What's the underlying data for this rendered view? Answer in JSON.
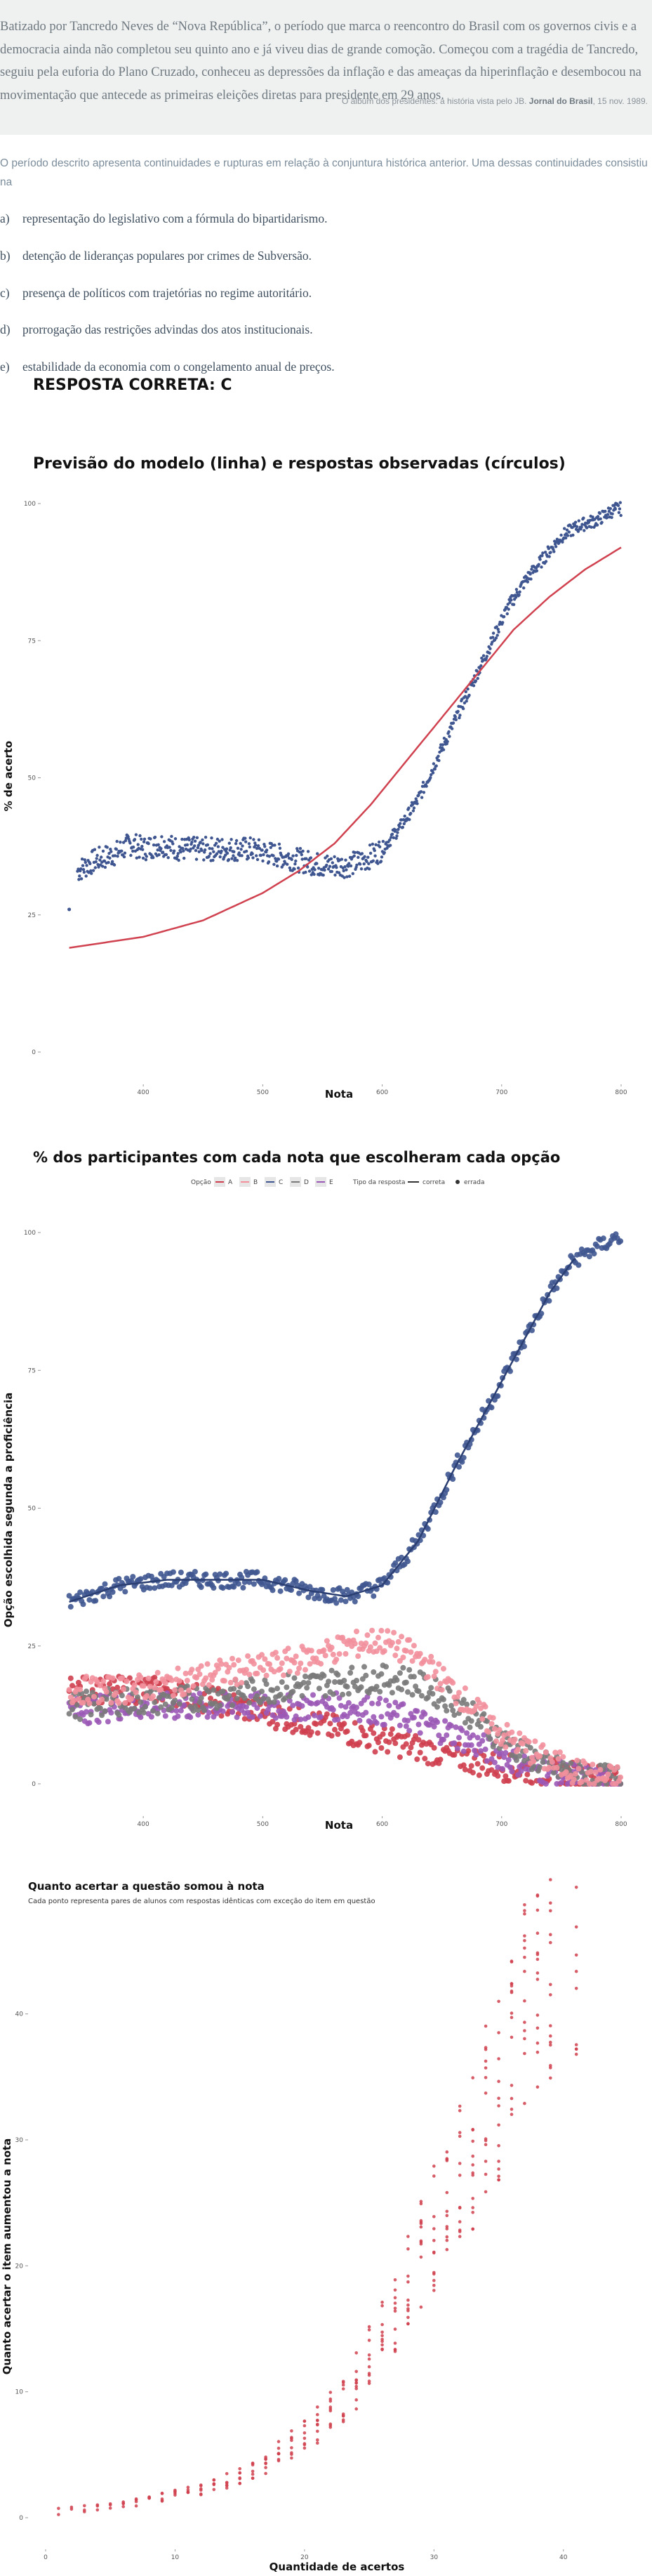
{
  "quote": {
    "text": "Batizado por Tancredo Neves de “Nova República”, o período que marca o reencontro do Brasil com os governos civis e a democracia ainda não completou seu quinto ano e já viveu dias de grande comoção. Começou com a tragédia de Tancredo, seguiu pela euforia do Plano Cruzado, conheceu as depressões da inflação e das ameaças da hiperinflação e desembocou na movimentação que antecede as primeiras eleições diretas para presidente em 29 anos.",
    "source_prefix": "O álbum dos presidentes: a história vista pelo JB.",
    "source_bold": "Jornal do Brasil",
    "source_suffix": ", 15 nov. 1989."
  },
  "intro": "O período descrito apresenta continuidades e rupturas em relação à conjuntura histórica anterior. Uma dessas continuidades consistiu na",
  "options": [
    {
      "letter": "a)",
      "text": "representação do legislativo com a fórmula do bipartidarismo."
    },
    {
      "letter": "b)",
      "text": "detenção de lideranças populares por crimes de Subversão."
    },
    {
      "letter": "c)",
      "text": "presença de políticos com trajetórias no regime autoritário."
    },
    {
      "letter": "d)",
      "text": "prorrogação das restrições advindas dos atos institucionais."
    },
    {
      "letter": "e)",
      "text": "estabilidade da economia com o congelamento anual de preços."
    }
  ],
  "answer": "RESPOSTA CORRETA: C",
  "chart_data": [
    {
      "type": "scatter",
      "title": "Previsão do modelo (linha) e respostas observadas (círculos)",
      "xlabel": "Nota",
      "ylabel": "% de acerto",
      "xlim": [
        330,
        800
      ],
      "ylim": [
        0,
        100
      ],
      "x_ticks": [
        400,
        500,
        600,
        700,
        800
      ],
      "y_ticks": [
        0,
        25,
        50,
        75,
        100
      ],
      "grid": false,
      "observed": {
        "shape": "scattered points, one per score, mean ~37 below 570 then rising steeply to ~100 at 800",
        "points": [
          [
            338,
            26
          ],
          [
            345,
            33
          ],
          [
            360,
            35
          ],
          [
            375,
            36
          ],
          [
            390,
            38
          ],
          [
            400,
            37
          ],
          [
            415,
            38
          ],
          [
            430,
            37
          ],
          [
            450,
            37
          ],
          [
            470,
            37
          ],
          [
            490,
            37
          ],
          [
            510,
            36
          ],
          [
            530,
            35
          ],
          [
            550,
            34
          ],
          [
            570,
            34
          ],
          [
            585,
            35
          ],
          [
            600,
            37
          ],
          [
            615,
            41
          ],
          [
            630,
            46
          ],
          [
            645,
            53
          ],
          [
            660,
            60
          ],
          [
            675,
            67
          ],
          [
            690,
            74
          ],
          [
            705,
            81
          ],
          [
            720,
            86
          ],
          [
            735,
            90
          ],
          [
            750,
            94
          ],
          [
            765,
            96
          ],
          [
            780,
            97
          ],
          [
            795,
            99
          ]
        ]
      },
      "model": {
        "points": [
          [
            338,
            19
          ],
          [
            400,
            21
          ],
          [
            450,
            24
          ],
          [
            500,
            29
          ],
          [
            530,
            33
          ],
          [
            560,
            38
          ],
          [
            590,
            45
          ],
          [
            620,
            53
          ],
          [
            650,
            61
          ],
          [
            680,
            69
          ],
          [
            710,
            77
          ],
          [
            740,
            83
          ],
          [
            770,
            88
          ],
          [
            800,
            92
          ]
        ]
      },
      "colors": {
        "observed": "#3f5690",
        "model": "#d0424f"
      }
    },
    {
      "type": "scatter",
      "title": "% dos participantes com cada nota que escolheram cada opção",
      "xlabel": "Nota",
      "ylabel": "Opção escolhida segunda a proficiência",
      "xlim": [
        330,
        800
      ],
      "ylim": [
        0,
        100
      ],
      "x_ticks": [
        400,
        500,
        600,
        700,
        800
      ],
      "y_ticks": [
        0,
        25,
        50,
        75,
        100
      ],
      "grid": false,
      "legend": {
        "position": "top",
        "option_title": "Opção",
        "options": [
          "A",
          "B",
          "C",
          "D",
          "E"
        ],
        "type_title": "Tipo da resposta",
        "types": [
          "correta",
          "errada"
        ]
      },
      "series": [
        {
          "name": "A",
          "color": "#cf3f4f",
          "points": [
            [
              338,
              17
            ],
            [
              380,
              17
            ],
            [
              420,
              17
            ],
            [
              460,
              15
            ],
            [
              500,
              13
            ],
            [
              540,
              11
            ],
            [
              580,
              9
            ],
            [
              620,
              7
            ],
            [
              660,
              5
            ],
            [
              700,
              3
            ],
            [
              740,
              2
            ],
            [
              780,
              1
            ]
          ]
        },
        {
          "name": "B",
          "color": "#f2909c",
          "points": [
            [
              338,
              17
            ],
            [
              380,
              17
            ],
            [
              420,
              18
            ],
            [
              460,
              20
            ],
            [
              500,
              21
            ],
            [
              540,
              23
            ],
            [
              570,
              25
            ],
            [
              600,
              26
            ],
            [
              630,
              23
            ],
            [
              660,
              17
            ],
            [
              700,
              9
            ],
            [
              740,
              4
            ],
            [
              780,
              1
            ]
          ]
        },
        {
          "name": "C",
          "color": "#3f5690",
          "points": [
            [
              338,
              33
            ],
            [
              380,
              36
            ],
            [
              420,
              37
            ],
            [
              460,
              37
            ],
            [
              500,
              37
            ],
            [
              540,
              35
            ],
            [
              570,
              34
            ],
            [
              600,
              36
            ],
            [
              630,
              44
            ],
            [
              660,
              57
            ],
            [
              700,
              73
            ],
            [
              740,
              89
            ],
            [
              760,
              95
            ],
            [
              795,
              99
            ]
          ]
        },
        {
          "name": "D",
          "color": "#7a7a7a",
          "points": [
            [
              338,
              14
            ],
            [
              380,
              15
            ],
            [
              420,
              15
            ],
            [
              460,
              16
            ],
            [
              500,
              17
            ],
            [
              540,
              18
            ],
            [
              580,
              19
            ],
            [
              620,
              19
            ],
            [
              660,
              15
            ],
            [
              700,
              8
            ],
            [
              740,
              3
            ],
            [
              780,
              1
            ]
          ]
        },
        {
          "name": "E",
          "color": "#9b59b6",
          "points": [
            [
              338,
              13
            ],
            [
              380,
              14
            ],
            [
              420,
              14
            ],
            [
              460,
              14
            ],
            [
              500,
              14
            ],
            [
              540,
              14
            ],
            [
              580,
              14
            ],
            [
              620,
              12
            ],
            [
              660,
              9
            ],
            [
              700,
              5
            ],
            [
              740,
              2
            ],
            [
              795,
              0
            ]
          ]
        }
      ]
    },
    {
      "type": "scatter",
      "title": "Quanto acertar a questão somou à nota",
      "subtitle": "Cada ponto representa pares de alunos com respostas idênticas com exceção do item em questão",
      "xlabel": "Quantidade de acertos",
      "ylabel": "Quanto acertar o item aumentou a nota",
      "xlim": [
        0,
        45
      ],
      "ylim": [
        0,
        45
      ],
      "x_ticks": [
        0,
        10,
        20,
        30,
        40
      ],
      "y_ticks": [
        0,
        10,
        20,
        30,
        40
      ],
      "grid": false,
      "color": "#d0424f",
      "points": [
        [
          1,
          0.5
        ],
        [
          2,
          0.6
        ],
        [
          3,
          0.7
        ],
        [
          4,
          0.8
        ],
        [
          5,
          0.9
        ],
        [
          6,
          1
        ],
        [
          7,
          1.2
        ],
        [
          8,
          1.4
        ],
        [
          9,
          1.6
        ],
        [
          10,
          1.8
        ],
        [
          11,
          2
        ],
        [
          12,
          2.3
        ],
        [
          13,
          2.6
        ],
        [
          14,
          3
        ],
        [
          15,
          3.4
        ],
        [
          16,
          3.8
        ],
        [
          17,
          4.3
        ],
        [
          18,
          5
        ],
        [
          19,
          5.7
        ],
        [
          20,
          6.5
        ],
        [
          21,
          7.5
        ],
        [
          22,
          8.5
        ],
        [
          23,
          9.5
        ],
        [
          24,
          11
        ],
        [
          25,
          12.5
        ],
        [
          26,
          14.5
        ],
        [
          27,
          16.5
        ],
        [
          28,
          19
        ],
        [
          29,
          21
        ],
        [
          30,
          23
        ],
        [
          31,
          25
        ],
        [
          32,
          27
        ],
        [
          33,
          29
        ],
        [
          34,
          32
        ],
        [
          35,
          34
        ],
        [
          36,
          37
        ],
        [
          37,
          40
        ],
        [
          38,
          42
        ],
        [
          39,
          44
        ],
        [
          41,
          47
        ]
      ]
    }
  ]
}
